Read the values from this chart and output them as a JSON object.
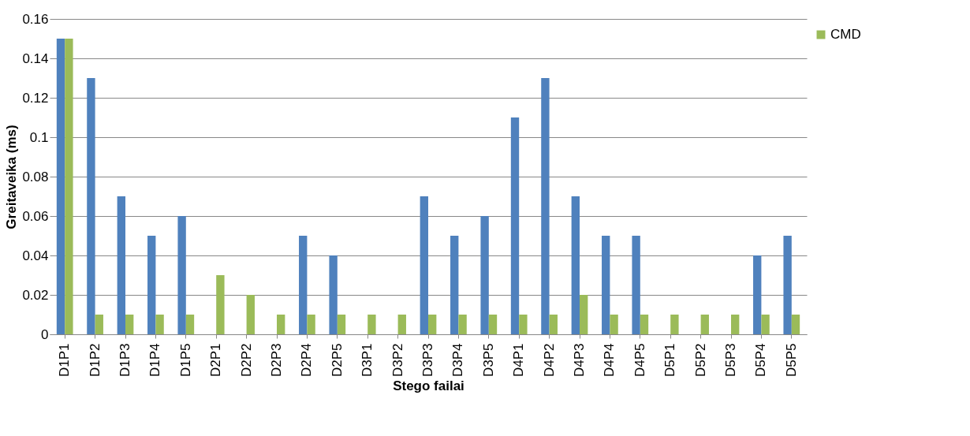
{
  "chart_data": {
    "type": "bar",
    "xlabel": "Stego failai",
    "ylabel": "Greitaveika (ms)",
    "categories": [
      "D1P1",
      "D1P2",
      "D1P3",
      "D1P4",
      "D1P5",
      "D2P1",
      "D2P2",
      "D2P3",
      "D2P4",
      "D2P5",
      "D3P1",
      "D3P2",
      "D3P3",
      "D3P4",
      "D3P5",
      "D4P1",
      "D4P2",
      "D4P3",
      "D4P4",
      "D4P5",
      "D5P1",
      "D5P2",
      "D5P3",
      "D5P4",
      "D5P5"
    ],
    "series": [
      {
        "color": "#4f81bd",
        "values": [
          0.15,
          0.13,
          0.07,
          0.05,
          0.06,
          0,
          0,
          0,
          0.05,
          0.04,
          0,
          0,
          0.07,
          0.05,
          0.06,
          0.11,
          0.13,
          0.07,
          0.05,
          0.05,
          0,
          0,
          0,
          0.04,
          0.05
        ]
      },
      {
        "name": "CMD",
        "color": "#9bbb59",
        "values": [
          0.15,
          0.01,
          0.01,
          0.01,
          0.01,
          0.03,
          0.02,
          0.01,
          0.01,
          0.01,
          0.01,
          0.01,
          0.01,
          0.01,
          0.01,
          0.01,
          0.01,
          0.02,
          0.01,
          0.01,
          0.01,
          0.01,
          0.01,
          0.01,
          0.01
        ]
      }
    ],
    "ylim": [
      0,
      0.16
    ],
    "yticks": [
      0,
      0.02,
      0.04,
      0.06,
      0.08,
      0.1,
      0.12,
      0.14,
      0.16
    ],
    "grid": "y",
    "legend": "right"
  }
}
